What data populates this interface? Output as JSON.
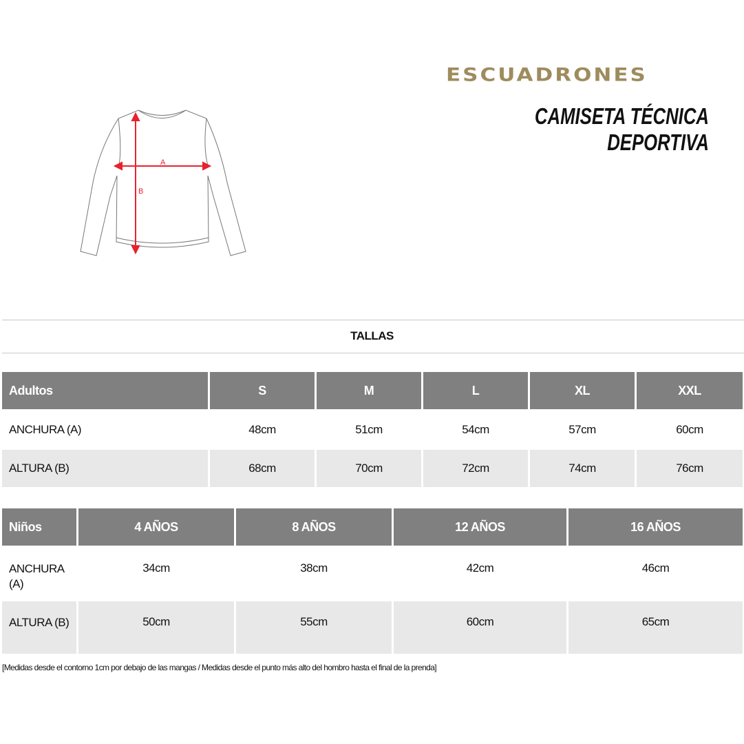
{
  "brand": {
    "logo_text": "ESCUADRONES",
    "logo_color": "#9e8c5e"
  },
  "title": "CAMISETA TÉCNICA DEPORTIVA",
  "diagram": {
    "label_a": "A",
    "label_b": "B",
    "arrow_color": "#e8212e"
  },
  "section_title": "TALLAS",
  "adults": {
    "headers": [
      "Adultos",
      "S",
      "M",
      "L",
      "XL",
      "XXL"
    ],
    "rows": [
      [
        "ANCHURA (A)",
        "48cm",
        "51cm",
        "54cm",
        "57cm",
        "60cm"
      ],
      [
        "ALTURA (B)",
        "68cm",
        "70cm",
        "72cm",
        "74cm",
        "76cm"
      ]
    ]
  },
  "kids": {
    "headers": [
      "Niños",
      "4 AÑOS",
      "8 AÑOS",
      "12 AÑOS",
      "16 AÑOS"
    ],
    "rows": [
      [
        "ANCHURA (A)",
        "34cm",
        "38cm",
        "42cm",
        "46cm"
      ],
      [
        "ALTURA (B)",
        "50cm",
        "55cm",
        "60cm",
        "65cm"
      ]
    ]
  },
  "footnote": "[Medidas desde el contorno 1cm por debajo de las mangas / Medidas desde el punto más alto del hombro hasta el final de la prenda]",
  "colors": {
    "header_bg": "#808080",
    "stripe_bg": "#e8e8e8"
  }
}
